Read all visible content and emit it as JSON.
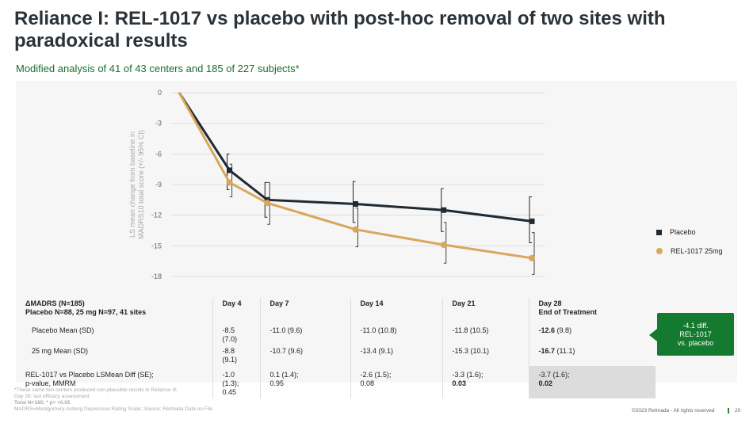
{
  "title": "Reliance I: REL-1017 vs placebo with post-hoc removal of two sites with paradoxical results",
  "subtitle": "Modified analysis of 41 of 43 centers and 185 of 227 subjects*",
  "chart_data": {
    "type": "line",
    "ylabel": "LS mean change from baseline in MADRS10 total score (+/- 95% CI)",
    "x": [
      0,
      4,
      7,
      14,
      21,
      28
    ],
    "ylim": [
      -18,
      0
    ],
    "yticks": [
      0,
      -3,
      -6,
      -9,
      -12,
      -15,
      -18
    ],
    "grid": true,
    "legend_position": "right",
    "series": [
      {
        "name": "Placebo",
        "color": "#1f2a32",
        "marker": "square",
        "values": [
          0,
          -7.6,
          -10.5,
          -10.9,
          -11.5,
          -12.6
        ],
        "ci_low": [
          null,
          -9.5,
          -12.2,
          -12.7,
          -13.6,
          -14.7
        ],
        "ci_high": [
          null,
          -6.0,
          -8.8,
          -8.7,
          -9.4,
          -10.2
        ]
      },
      {
        "name": "REL-1017 25mg",
        "color": "#d9a75a",
        "marker": "circle",
        "values": [
          0,
          -8.8,
          -10.8,
          -13.4,
          -14.9,
          -16.2
        ],
        "ci_low": [
          null,
          -10.2,
          -12.9,
          -15.1,
          -16.7,
          -17.8
        ],
        "ci_high": [
          null,
          -7.0,
          -8.8,
          -11.3,
          -12.7,
          -13.7
        ]
      }
    ]
  },
  "table": {
    "head1": "ΔMADRS (N=185)",
    "head2": "Placebo N=88, 25 mg N=97, 41 sites",
    "days": [
      "Day 4",
      "Day 7",
      "Day 14",
      "Day 21",
      "Day 28"
    ],
    "day28_sub": "End of Treatment",
    "rows": [
      {
        "label": "Placebo Mean (SD)",
        "cells": [
          "-8.5 (7.0)",
          "-11.0 (9.6)",
          "-11.0 (10.8)",
          "-11.8 (10.5)"
        ],
        "last_bold": "-12.6",
        "last_rest": " (9.8)"
      },
      {
        "label": "25 mg  Mean (SD)",
        "cells": [
          "-8.8 (9.1)",
          "-10.7 (9.6)",
          "-13.4 (9.1)",
          "-15.3 (10.1)"
        ],
        "last_bold": "-16.7",
        "last_rest": " (11.1)"
      }
    ],
    "diff_label1": "REL-1017 vs Placebo LSMean Diff (SE);",
    "diff_label2": "p-value, MMRM",
    "diff": [
      [
        "-1.0 (1.3);",
        "0.45"
      ],
      [
        "0.1 (1.4);",
        "0.95"
      ],
      [
        "-2.6 (1.5);",
        "0.08"
      ],
      [
        "-3.3 (1.6);",
        "0.03"
      ],
      [
        "-3.7 (1.6);",
        "0.02"
      ]
    ]
  },
  "callout": [
    "-4.1 diff.",
    "REL-1017",
    "vs. placebo"
  ],
  "footnotes": [
    "*These same two centers produced non-plausible results in Reliance III",
    "Day 28: last efficacy assessment",
    "Total N=185; * p= <0.05",
    "MADRS=Montgomery-Asberg Depression Rating Scale; Source: Relmada Data on File"
  ],
  "copyright": "©2023 Relmada - All rights reserved",
  "page": "20"
}
